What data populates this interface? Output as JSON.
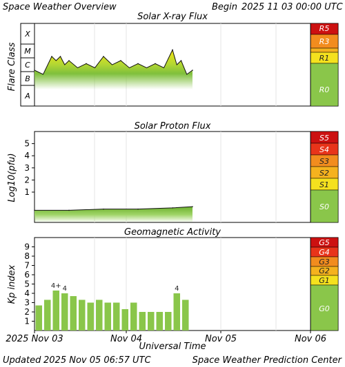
{
  "header": {
    "title": "Space Weather Overview",
    "begin_label": "Begin",
    "begin_value": "2025 11 03 00:00 UTC"
  },
  "footer": {
    "updated_label": "Updated",
    "updated_value": "2025 Nov 05 06:57 UTC",
    "credit": "Space Weather Prediction Center"
  },
  "colors": {
    "level_red": "#cc1111",
    "level_redlight": "#e8341a",
    "level_orange": "#f28c1e",
    "level_amber": "#f5b21e",
    "level_yellow": "#f5e11e",
    "level_green": "#8ac64a",
    "bar_green": "#8ac64a",
    "flux_green": "#7fc03c",
    "flux_yellow": "#f2e311",
    "frame": "#000000",
    "grid": "#e4e4e4"
  },
  "chart_data": [
    {
      "type": "area",
      "title": "Solar X-ray Flux",
      "ylabel": "Flare Class",
      "class_labels": [
        "X",
        "M",
        "C",
        "B",
        "A"
      ],
      "x": [
        "2025-11-03 00:00",
        "2025-11-03 06:00",
        "2025-11-03 09:00",
        "2025-11-03 12:00",
        "2025-11-03 18:00",
        "2025-11-04 00:00",
        "2025-11-04 06:00",
        "2025-11-04 12:00",
        "2025-11-04 18:00",
        "2025-11-05 00:00",
        "2025-11-05 03:00",
        "2025-11-05 06:57"
      ],
      "y_class": [
        "C1",
        "M1",
        "M1",
        "C5",
        "C3",
        "M1",
        "C5",
        "C3",
        "C3",
        "M3",
        "C5",
        "C1"
      ],
      "scale_labels": [
        "R5",
        "R3",
        "R1",
        "R0"
      ],
      "ylim": [
        "A",
        "X"
      ],
      "log_scale": true
    },
    {
      "type": "area",
      "title": "Solar Proton Flux",
      "ylabel": "Log10(pfu)",
      "yticks": [
        1,
        2,
        3,
        4,
        5
      ],
      "x": [
        "2025-11-03 00:00",
        "2025-11-03 12:00",
        "2025-11-04 00:00",
        "2025-11-04 12:00",
        "2025-11-05 00:00",
        "2025-11-05 06:57"
      ],
      "y": [
        -0.5,
        -0.5,
        -0.4,
        -0.4,
        -0.3,
        -0.2
      ],
      "scale_labels": [
        "S5",
        "S4",
        "S3",
        "S2",
        "S1",
        "S0"
      ],
      "ylim": [
        -1.5,
        6
      ]
    },
    {
      "type": "bar",
      "title": "Geomagnetic Activity",
      "ylabel": "Kp index",
      "xlabel": "Universal Time",
      "x_ticks": [
        "2025 Nov 03",
        "Nov 04",
        "Nov 05",
        "Nov 06"
      ],
      "yticks": [
        1,
        2,
        3,
        4,
        5,
        6,
        7,
        8,
        9
      ],
      "values": [
        2.7,
        3.3,
        4.3,
        4.0,
        3.7,
        3.3,
        3.0,
        3.3,
        3.0,
        3.0,
        2.3,
        3.0,
        2.0,
        2.0,
        2.0,
        2.0,
        4.0,
        3.3
      ],
      "bar_labels": [
        "",
        "",
        "4+",
        "4",
        "",
        "",
        "",
        "",
        "",
        "",
        "",
        "",
        "",
        "",
        "",
        "",
        "4",
        ""
      ],
      "scale_labels": [
        "G5",
        "G4",
        "G3",
        "G2",
        "G1",
        "G0"
      ],
      "ylim": [
        0,
        10
      ]
    }
  ]
}
